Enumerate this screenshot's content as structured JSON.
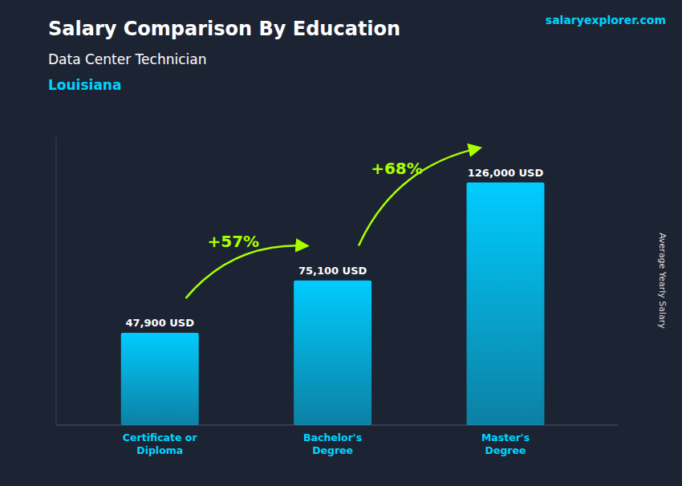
{
  "chart_data": {
    "type": "bar",
    "title": "Salary Comparison By Education",
    "subtitle": "Data Center Technician",
    "location": "Louisiana",
    "source": "salaryexplorer.com",
    "y_label": "Average Yearly Salary",
    "categories": [
      "Certificate or\nDiploma",
      "Bachelor's\nDegree",
      "Master's\nDegree"
    ],
    "values": [
      47900,
      75100,
      126000
    ],
    "value_labels": [
      "47,900 USD",
      "75,100 USD",
      "126,000 USD"
    ],
    "annotations": [
      {
        "text": "+57%",
        "color": "#aaff00"
      },
      {
        "text": "+68%",
        "color": "#aaff00"
      }
    ],
    "color": "#00ccff",
    "ylim": [
      0,
      150000
    ],
    "data_labels": true,
    "tick_labels": "x",
    "grid": false
  }
}
